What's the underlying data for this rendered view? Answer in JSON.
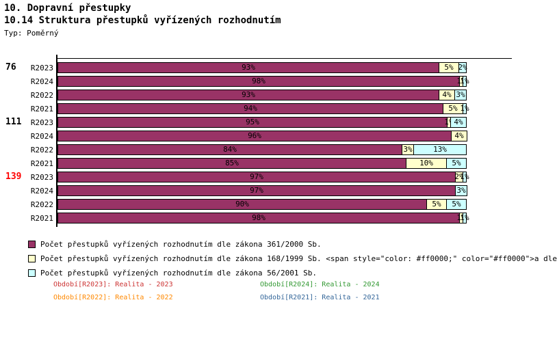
{
  "header": {
    "chapter": "10. Dopravní přestupky",
    "section": "10.14 Struktura přestupků vyřízených rozhodnutím",
    "type_label": "Typ: Poměrný"
  },
  "chart_data": {
    "type": "bar",
    "orientation": "horizontal",
    "stacked": true,
    "unit": "%",
    "xlim": [
      0,
      100
    ],
    "grid": false,
    "series_names": [
      "Počet přestupků vyřízených rozhodnutím dle zákona 361/2000 Sb.",
      "Počet přestupků vyřízených rozhodnutím dle zákona 168/1999 Sb.",
      "Počet přestupků vyřízených rozhodnutím dle zákona 56/2001 Sb."
    ],
    "series_colors": [
      "#993366",
      "#FFFFCC",
      "#CCFFFF"
    ],
    "groups": [
      {
        "label": "76",
        "highlight": false,
        "rows": [
          {
            "label": "R2023",
            "values": [
              93,
              5,
              2
            ]
          },
          {
            "label": "R2024",
            "values": [
              98,
              1,
              1
            ]
          },
          {
            "label": "R2022",
            "values": [
              93,
              4,
              3
            ]
          },
          {
            "label": "R2021",
            "values": [
              94,
              5,
              1
            ]
          }
        ]
      },
      {
        "label": "111",
        "highlight": false,
        "rows": [
          {
            "label": "R2023",
            "values": [
              95,
              1,
              4
            ]
          },
          {
            "label": "R2024",
            "values": [
              96,
              4,
              0
            ]
          },
          {
            "label": "R2022",
            "values": [
              84,
              3,
              13
            ]
          },
          {
            "label": "R2021",
            "values": [
              85,
              10,
              5
            ]
          }
        ]
      },
      {
        "label": "139",
        "highlight": true,
        "rows": [
          {
            "label": "R2023",
            "values": [
              97,
              2,
              1
            ]
          },
          {
            "label": "R2024",
            "values": [
              97,
              0,
              3
            ]
          },
          {
            "label": "R2022",
            "values": [
              90,
              5,
              5
            ]
          },
          {
            "label": "R2021",
            "values": [
              98,
              1,
              1
            ]
          }
        ]
      }
    ]
  },
  "legend": [
    {
      "color": "#993366",
      "text": "Počet přestupků vyřízených rozhodnutím dle zákona 361/2000 Sb."
    },
    {
      "color": "#FFFFCC",
      "text": "Počet přestupků vyřízených rozhodnutím dle zákona 168/1999 Sb. <span style=\"color: #ff0000;\" color=\"#ff0000\">a dle"
    },
    {
      "color": "#CCFFFF",
      "text": "Počet přestupků vyřízených rozhodnutím dle zákona 56/2001 Sb."
    }
  ],
  "footer": [
    {
      "text": "Období[R2023]: Realita - 2023",
      "color": "#CC3333",
      "col": 0,
      "row": 0
    },
    {
      "text": "Období[R2024]: Realita - 2024",
      "color": "#339933",
      "col": 1,
      "row": 0
    },
    {
      "text": "Období[R2022]: Realita - 2022",
      "color": "#FF8800",
      "col": 0,
      "row": 1
    },
    {
      "text": "Období[R2021]: Realita - 2021",
      "color": "#336699",
      "col": 1,
      "row": 1
    }
  ],
  "colors": {
    "axis": "#000000",
    "group_highlight": "#FF0000"
  }
}
